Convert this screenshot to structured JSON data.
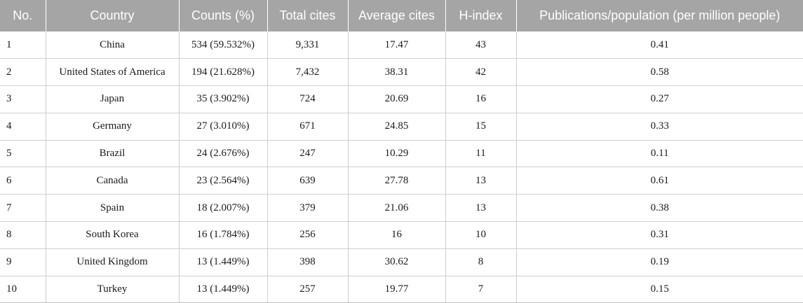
{
  "headers": {
    "no": "No.",
    "country": "Country",
    "counts": "Counts (%)",
    "total_cites": "Total cites",
    "average_cites": "Average cites",
    "h_index": "H-index",
    "pub_pop": "Publications/population (per million people)"
  },
  "rows": [
    {
      "no": "1",
      "country": "China",
      "counts": "534 (59.532%)",
      "total_cites": "9,331",
      "average_cites": "17.47",
      "h_index": "43",
      "pub_pop": "0.41"
    },
    {
      "no": "2",
      "country": "United States of America",
      "counts": "194 (21.628%)",
      "total_cites": "7,432",
      "average_cites": "38.31",
      "h_index": "42",
      "pub_pop": "0.58"
    },
    {
      "no": "3",
      "country": "Japan",
      "counts": "35 (3.902%)",
      "total_cites": "724",
      "average_cites": "20.69",
      "h_index": "16",
      "pub_pop": "0.27"
    },
    {
      "no": "4",
      "country": "Germany",
      "counts": "27 (3.010%)",
      "total_cites": "671",
      "average_cites": "24.85",
      "h_index": "15",
      "pub_pop": "0.33"
    },
    {
      "no": "5",
      "country": "Brazil",
      "counts": "24 (2.676%)",
      "total_cites": "247",
      "average_cites": "10.29",
      "h_index": "11",
      "pub_pop": "0.11"
    },
    {
      "no": "6",
      "country": "Canada",
      "counts": "23 (2.564%)",
      "total_cites": "639",
      "average_cites": "27.78",
      "h_index": "13",
      "pub_pop": "0.61"
    },
    {
      "no": "7",
      "country": "Spain",
      "counts": "18 (2.007%)",
      "total_cites": "379",
      "average_cites": "21.06",
      "h_index": "13",
      "pub_pop": "0.38"
    },
    {
      "no": "8",
      "country": "South Korea",
      "counts": "16 (1.784%)",
      "total_cites": "256",
      "average_cites": "16",
      "h_index": "10",
      "pub_pop": "0.31"
    },
    {
      "no": "9",
      "country": "United Kingdom",
      "counts": "13 (1.449%)",
      "total_cites": "398",
      "average_cites": "30.62",
      "h_index": "8",
      "pub_pop": "0.19"
    },
    {
      "no": "10",
      "country": "Turkey",
      "counts": "13 (1.449%)",
      "total_cites": "257",
      "average_cites": "19.77",
      "h_index": "7",
      "pub_pop": "0.15"
    }
  ],
  "colors": {
    "header_bg": "#a5a5a5",
    "header_text": "#ffffff",
    "grid_line": "#cfcfcf"
  }
}
